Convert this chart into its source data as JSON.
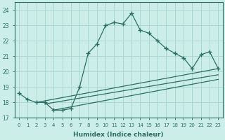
{
  "xlabel": "Humidex (Indice chaleur)",
  "ylabel": "",
  "bg_color": "#cceee8",
  "grid_color": "#aad8d0",
  "line_color": "#2a6e64",
  "xlim": [
    -0.5,
    23.5
  ],
  "ylim": [
    17,
    24.5
  ],
  "yticks": [
    17,
    18,
    19,
    20,
    21,
    22,
    23,
    24
  ],
  "xticks": [
    0,
    1,
    2,
    3,
    4,
    5,
    6,
    7,
    8,
    9,
    10,
    11,
    12,
    13,
    14,
    15,
    16,
    17,
    18,
    19,
    20,
    21,
    22,
    23
  ],
  "series1_x": [
    0,
    1,
    2,
    3,
    4,
    5,
    6,
    7,
    8,
    9,
    10,
    11,
    12,
    13,
    14,
    15,
    16,
    17,
    18,
    19,
    20,
    21,
    22,
    23
  ],
  "series1_y": [
    18.6,
    18.2,
    18.0,
    18.0,
    17.5,
    17.5,
    17.6,
    19.0,
    21.2,
    21.8,
    23.0,
    23.2,
    23.1,
    23.8,
    22.7,
    22.5,
    22.0,
    21.5,
    21.2,
    20.9,
    20.2,
    21.1,
    21.3,
    20.2
  ],
  "line2_x": [
    2,
    23
  ],
  "line2_y": [
    18.0,
    20.2
  ],
  "line3_x": [
    3,
    23
  ],
  "line3_y": [
    17.9,
    19.8
  ],
  "line4_x": [
    4,
    23
  ],
  "line4_y": [
    17.5,
    19.5
  ]
}
